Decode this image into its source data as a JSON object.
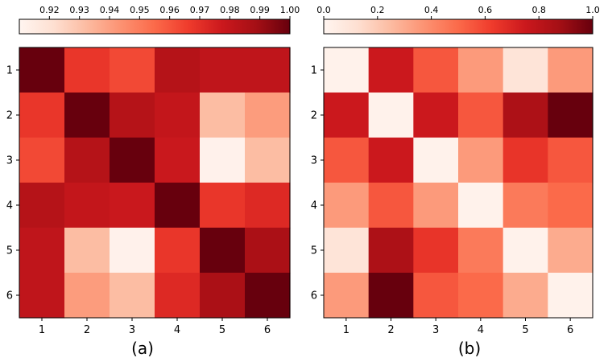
{
  "chart_data": [
    {
      "type": "heatmap",
      "caption": "(a)",
      "colormap": "Reds",
      "vmin": 0.91,
      "vmax": 1.0,
      "colorbar_ticks": [
        "0.92",
        "0.93",
        "0.94",
        "0.95",
        "0.96",
        "0.97",
        "0.98",
        "0.99",
        "1.00"
      ],
      "colorbar_tick_values": [
        0.92,
        0.93,
        0.94,
        0.95,
        0.96,
        0.97,
        0.98,
        0.99,
        1.0
      ],
      "colorbar_position": "top",
      "row_labels": [
        "1",
        "2",
        "3",
        "4",
        "5",
        "6"
      ],
      "col_labels": [
        "1",
        "2",
        "3",
        "4",
        "5",
        "6"
      ],
      "values": [
        [
          1.0,
          0.968,
          0.963,
          0.984,
          0.981,
          0.981
        ],
        [
          0.968,
          1.0,
          0.984,
          0.98,
          0.932,
          0.941
        ],
        [
          0.963,
          0.984,
          1.0,
          0.978,
          0.912,
          0.932
        ],
        [
          0.984,
          0.98,
          0.978,
          1.0,
          0.968,
          0.972
        ],
        [
          0.981,
          0.932,
          0.912,
          0.968,
          1.0,
          0.987
        ],
        [
          0.981,
          0.941,
          0.932,
          0.972,
          0.987,
          1.0
        ]
      ]
    },
    {
      "type": "heatmap",
      "caption": "(b)",
      "colormap": "Reds",
      "vmin": 0.0,
      "vmax": 1.0,
      "colorbar_ticks": [
        "0.0",
        "0.2",
        "0.4",
        "0.6",
        "0.8",
        "1.0"
      ],
      "colorbar_tick_values": [
        0.0,
        0.2,
        0.4,
        0.6,
        0.8,
        1.0
      ],
      "colorbar_position": "top",
      "row_labels": [
        "1",
        "2",
        "3",
        "4",
        "5",
        "6"
      ],
      "col_labels": [
        "1",
        "2",
        "3",
        "4",
        "5",
        "6"
      ],
      "values": [
        [
          0.02,
          0.75,
          0.55,
          0.35,
          0.1,
          0.35
        ],
        [
          0.75,
          0.02,
          0.75,
          0.55,
          0.85,
          1.0
        ],
        [
          0.55,
          0.75,
          0.02,
          0.35,
          0.65,
          0.55
        ],
        [
          0.35,
          0.55,
          0.35,
          0.02,
          0.45,
          0.5
        ],
        [
          0.1,
          0.85,
          0.65,
          0.45,
          0.02,
          0.3
        ],
        [
          0.35,
          1.0,
          0.55,
          0.5,
          0.3,
          0.02
        ]
      ]
    }
  ]
}
